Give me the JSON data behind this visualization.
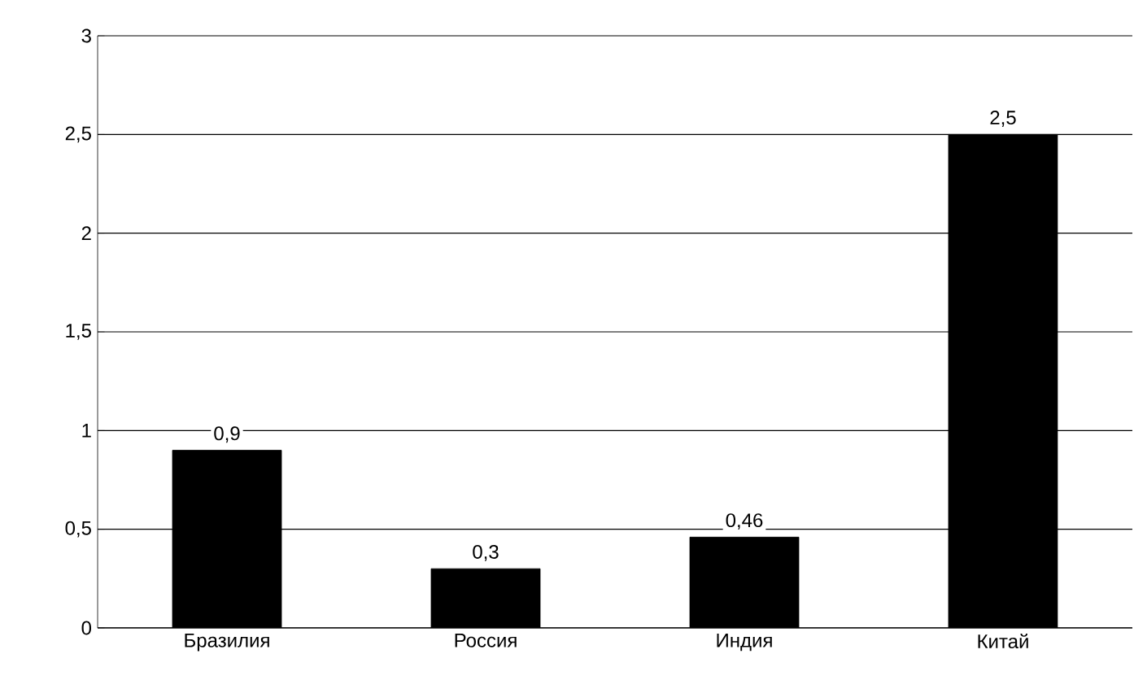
{
  "chart_data": {
    "type": "bar",
    "categories": [
      "Бразилия",
      "Россия",
      "Индия",
      "Китай"
    ],
    "values": [
      0.9,
      0.3,
      0.46,
      2.5
    ],
    "value_labels": [
      "0,9",
      "0,3",
      "0,46",
      "2,5"
    ],
    "color": "#000000",
    "ylim": [
      0,
      3
    ],
    "yticks": [
      0,
      {
        "value": 0.5,
        "label": "0,5"
      },
      1,
      {
        "value": 1.5,
        "label": "1,5"
      },
      2,
      {
        "value": 2.5,
        "label": "2,5"
      },
      3
    ],
    "grid": "y"
  }
}
